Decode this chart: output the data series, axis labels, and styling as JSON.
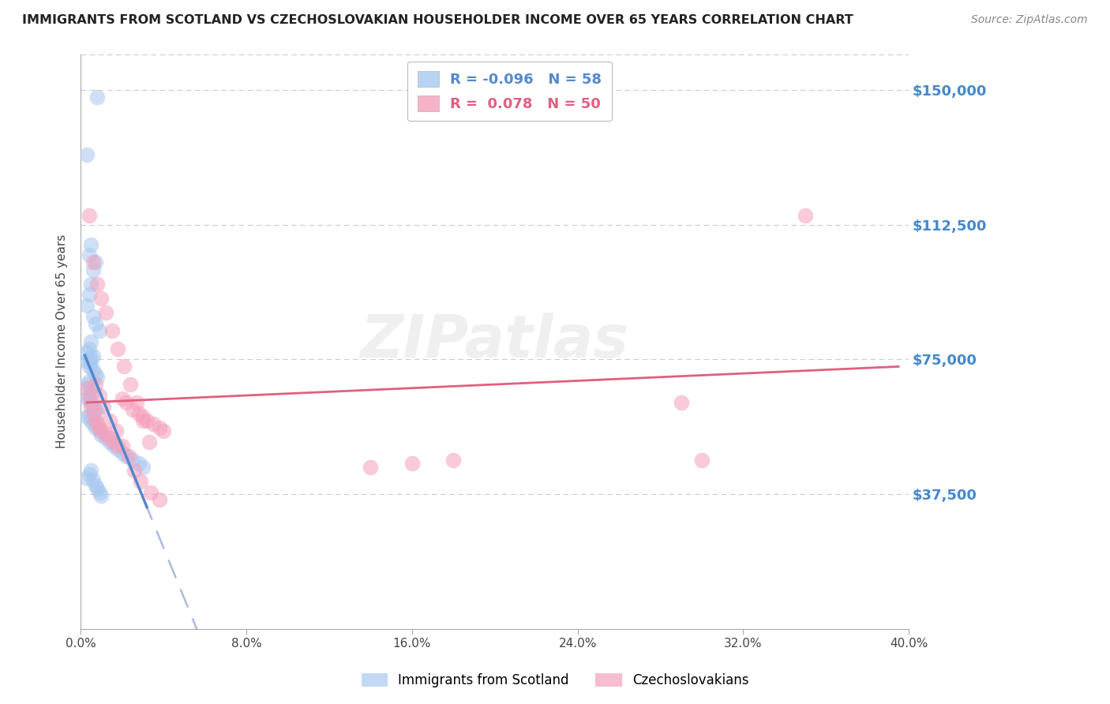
{
  "title": "IMMIGRANTS FROM SCOTLAND VS CZECHOSLOVAKIAN HOUSEHOLDER INCOME OVER 65 YEARS CORRELATION CHART",
  "source": "Source: ZipAtlas.com",
  "ylabel": "Householder Income Over 65 years",
  "xlim": [
    0.0,
    0.4
  ],
  "ylim": [
    0,
    160000
  ],
  "yticks": [
    0,
    37500,
    75000,
    112500,
    150000
  ],
  "ytick_labels": [
    "",
    "$37,500",
    "$75,000",
    "$112,500",
    "$150,000"
  ],
  "legend1_R": "-0.096",
  "legend1_N": "58",
  "legend2_R": "0.078",
  "legend2_N": "50",
  "color_blue": "#A8C8F0",
  "color_pink": "#F5A0BB",
  "color_blue_line": "#5588CC",
  "color_pink_line": "#E06080",
  "color_dashed": "#AABBDD",
  "color_ytick_label": "#4488CC",
  "background": "#FFFFFF",
  "grid_color": "#CCCCCC",
  "scotland_x": [
    0.008,
    0.003,
    0.005,
    0.004,
    0.007,
    0.006,
    0.005,
    0.004,
    0.003,
    0.006,
    0.007,
    0.009,
    0.005,
    0.004,
    0.003,
    0.006,
    0.005,
    0.004,
    0.003,
    0.005,
    0.004,
    0.006,
    0.007,
    0.008,
    0.004,
    0.003,
    0.005,
    0.006,
    0.004,
    0.003,
    0.005,
    0.006,
    0.007,
    0.008,
    0.004,
    0.003,
    0.005,
    0.006,
    0.007,
    0.009,
    0.01,
    0.012,
    0.014,
    0.016,
    0.018,
    0.02,
    0.022,
    0.025,
    0.028,
    0.03,
    0.005,
    0.004,
    0.003,
    0.006,
    0.007,
    0.008,
    0.009,
    0.01
  ],
  "scotland_y": [
    148000,
    132000,
    107000,
    104000,
    102000,
    100000,
    96000,
    93000,
    90000,
    87000,
    85000,
    83000,
    80000,
    78000,
    77000,
    76000,
    75500,
    75000,
    74500,
    74000,
    73000,
    72000,
    71000,
    70000,
    69000,
    68000,
    67000,
    66000,
    65000,
    64000,
    63000,
    62000,
    61000,
    60000,
    59500,
    59000,
    58000,
    57000,
    56000,
    55000,
    54000,
    53000,
    52000,
    51000,
    50000,
    49000,
    48000,
    47000,
    46000,
    45000,
    44000,
    43000,
    42000,
    41500,
    40000,
    39000,
    38000,
    37000
  ],
  "czech_x": [
    0.003,
    0.004,
    0.005,
    0.006,
    0.007,
    0.008,
    0.009,
    0.01,
    0.012,
    0.014,
    0.016,
    0.018,
    0.02,
    0.022,
    0.025,
    0.028,
    0.03,
    0.032,
    0.035,
    0.038,
    0.04,
    0.004,
    0.006,
    0.008,
    0.01,
    0.012,
    0.015,
    0.018,
    0.021,
    0.024,
    0.027,
    0.03,
    0.033,
    0.007,
    0.009,
    0.011,
    0.014,
    0.017,
    0.02,
    0.023,
    0.026,
    0.029,
    0.034,
    0.038,
    0.35,
    0.29,
    0.3,
    0.18,
    0.16,
    0.14
  ],
  "czech_y": [
    67000,
    64000,
    62000,
    60000,
    58000,
    57000,
    56000,
    55000,
    54000,
    53000,
    52000,
    51000,
    64000,
    63000,
    61000,
    60000,
    59000,
    58000,
    57000,
    56000,
    55000,
    115000,
    102000,
    96000,
    92000,
    88000,
    83000,
    78000,
    73000,
    68000,
    63000,
    58000,
    52000,
    68000,
    65000,
    62000,
    58000,
    55000,
    51000,
    48000,
    44000,
    41000,
    38000,
    36000,
    115000,
    63000,
    47000,
    47000,
    46000,
    45000
  ]
}
